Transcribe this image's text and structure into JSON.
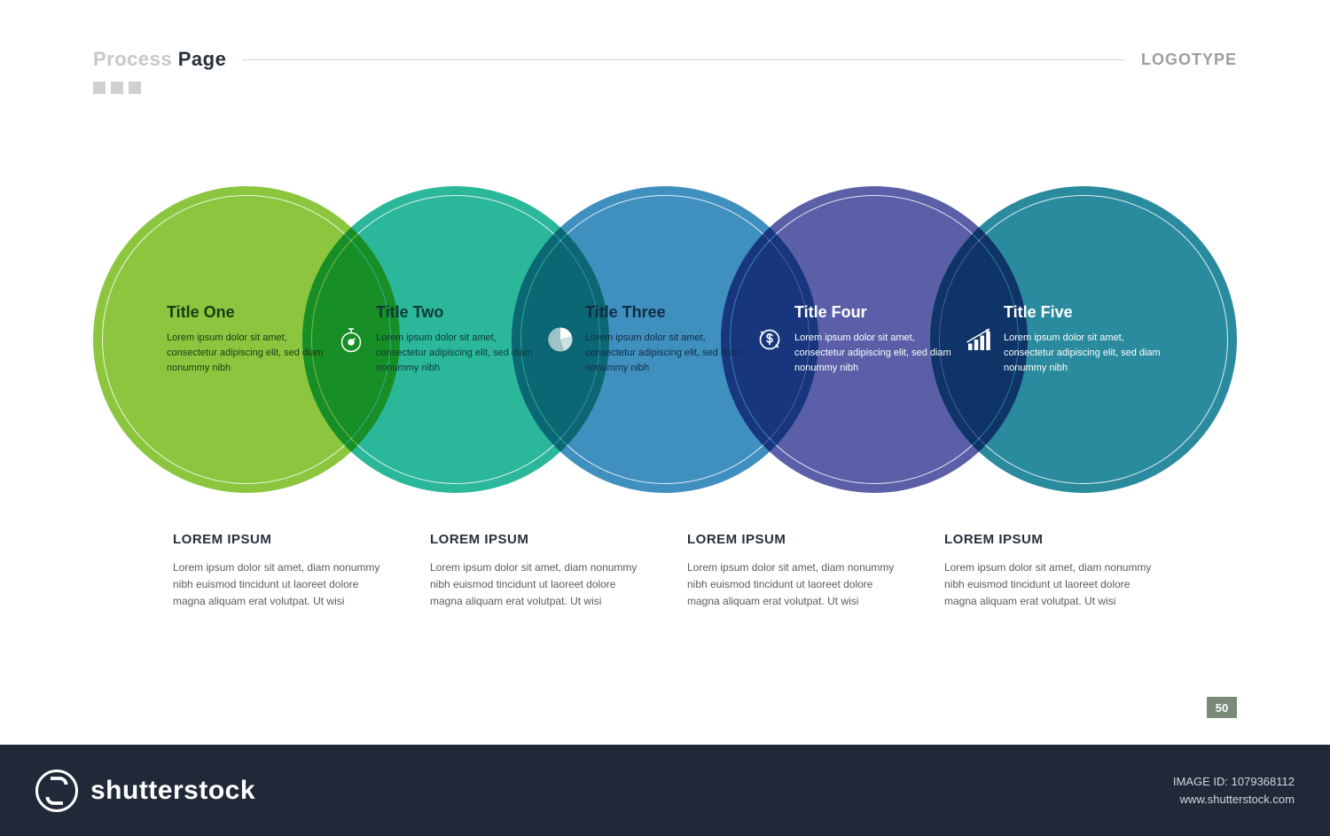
{
  "header": {
    "title_light": "Process ",
    "title_dark": "Page",
    "logotype": "LOGOTYPE"
  },
  "layout": {
    "circle_diameter": 346,
    "circle_pitch": 236,
    "overlap_centers_x": [
      291,
      527,
      763,
      999
    ],
    "inner_ring_inset": 10,
    "inner_ring_color": "rgba(255,255,255,0.85)",
    "background_color": "#ffffff"
  },
  "circles": [
    {
      "title": "Title One",
      "body": "Lorem ipsum dolor sit amet, consectetur adipiscing elit, sed diam nonummy nibh",
      "fill": "#8cc63f",
      "text_color": "#1b3a12"
    },
    {
      "title": "Title Two",
      "body": "Lorem ipsum dolor sit amet, consectetur adipiscing elit, sed diam nonummy nibh",
      "fill": "#2bb79a",
      "text_color": "#0d3b33"
    },
    {
      "title": "Title Three",
      "body": "Lorem ipsum dolor sit amet, consectetur adipiscing elit, sed diam nonummy nibh",
      "fill": "#3f8fbf",
      "text_color": "#0f2d44"
    },
    {
      "title": "Title Four",
      "body": "Lorem ipsum dolor sit amet, consectetur adipiscing elit, sed diam nonummy nibh",
      "fill": "#5a5fa8",
      "text_color": "#ffffff"
    },
    {
      "title": "Title Five",
      "body": "Lorem ipsum dolor sit amet, consectetur adipiscing elit, sed diam nonummy nibh",
      "fill": "#2a8a9e",
      "text_color": "#ffffff"
    }
  ],
  "overlap_icons": [
    {
      "name": "stopwatch-gear-icon"
    },
    {
      "name": "pie-segments-icon"
    },
    {
      "name": "dollar-cycle-icon"
    },
    {
      "name": "bar-growth-icon"
    }
  ],
  "columns": [
    {
      "title": "LOREM IPSUM",
      "body": "Lorem ipsum dolor sit amet, diam nonummy nibh euismod tincidunt ut laoreet dolore magna aliquam erat volutpat. Ut wisi"
    },
    {
      "title": "LOREM IPSUM",
      "body": "Lorem ipsum dolor sit amet, diam nonummy nibh euismod tincidunt ut laoreet dolore magna aliquam erat volutpat. Ut wisi"
    },
    {
      "title": "LOREM IPSUM",
      "body": "Lorem ipsum dolor sit amet, diam nonummy nibh euismod tincidunt ut laoreet dolore magna aliquam erat volutpat. Ut wisi"
    },
    {
      "title": "LOREM IPSUM",
      "body": "Lorem ipsum dolor sit amet, diam nonummy nibh euismod tincidunt ut laoreet dolore magna aliquam erat volutpat. Ut wisi"
    }
  ],
  "page_number": {
    "label": "50",
    "bg": "#7a8a7a"
  },
  "footer": {
    "brand": "shutterstock",
    "image_id_label": "IMAGE ID: 1079368112",
    "site": "www.shutterstock.com",
    "bg": "#1f2937"
  }
}
